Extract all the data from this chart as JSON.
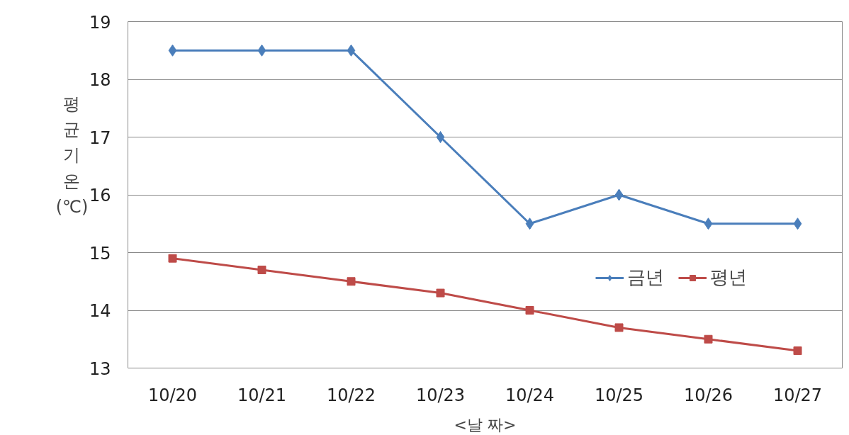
{
  "chart_data": {
    "type": "line",
    "ylabel": "평균기온 (℃)",
    "xlabel": "<날 짜>",
    "categories": [
      "10/20",
      "10/21",
      "10/22",
      "10/23",
      "10/24",
      "10/25",
      "10/26",
      "10/27"
    ],
    "series": [
      {
        "name": "금년",
        "color": "#4a7ebb",
        "marker": "diamond",
        "values": [
          18.5,
          18.5,
          18.5,
          17,
          15.5,
          16,
          15.5,
          15.5
        ]
      },
      {
        "name": "평년",
        "color": "#be4b48",
        "marker": "square",
        "values": [
          14.9,
          14.7,
          14.5,
          14.3,
          14.0,
          13.7,
          13.5,
          13.3
        ]
      }
    ],
    "ylim": [
      13,
      19
    ],
    "yticks": [
      13,
      14,
      15,
      16,
      17,
      18,
      19
    ],
    "grid": "y",
    "legend": "right",
    "line_style": "solid"
  }
}
